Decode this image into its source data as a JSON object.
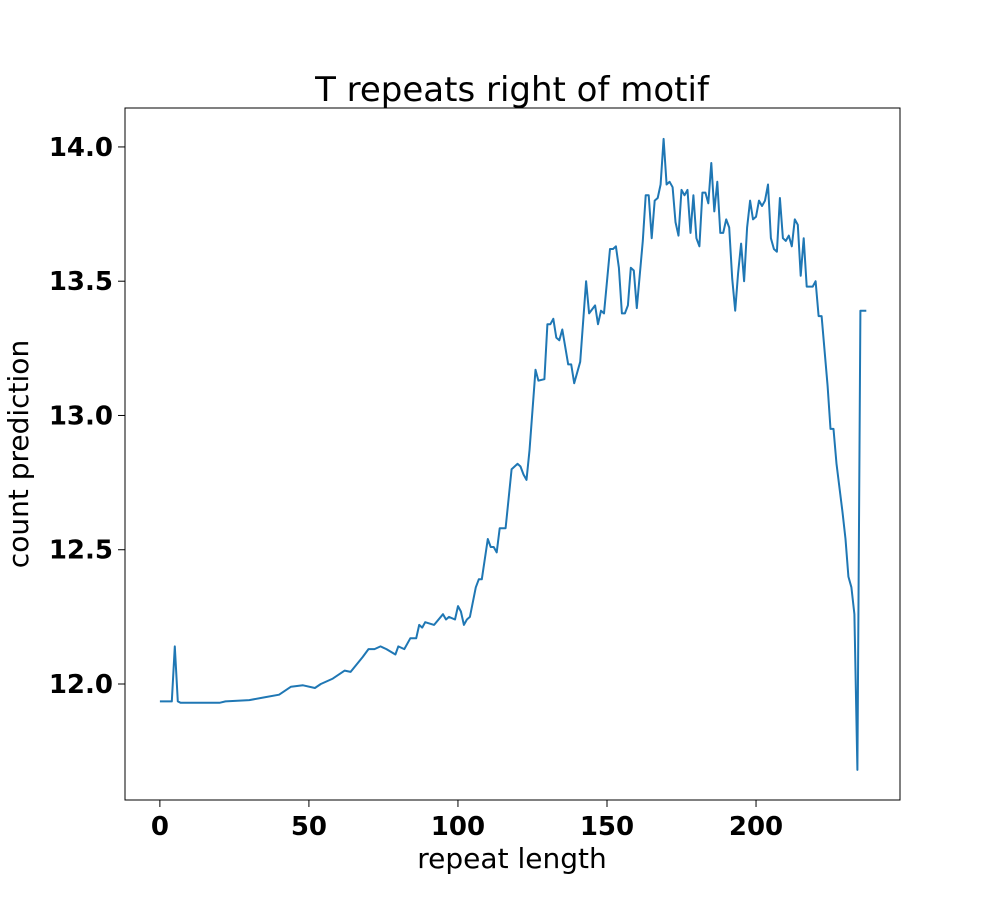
{
  "chart_data": {
    "type": "line",
    "title": "T repeats right of motif",
    "xlabel": "repeat length",
    "ylabel": "count prediction",
    "xlim": [
      -11.7,
      248.3
    ],
    "ylim": [
      11.568,
      14.145
    ],
    "xticks": [
      0,
      50,
      100,
      150,
      200
    ],
    "xtick_labels": [
      "0",
      "50",
      "100",
      "150",
      "200"
    ],
    "yticks": [
      12.0,
      12.5,
      13.0,
      13.5,
      14.0
    ],
    "ytick_labels": [
      "12.0",
      "12.5",
      "13.0",
      "13.5",
      "14.0"
    ],
    "grid": false,
    "series": [
      {
        "name": "count prediction",
        "color": "#1f77b4",
        "x": [
          0,
          4,
          5,
          6,
          7,
          20,
          22,
          30,
          35,
          40,
          44,
          48,
          52,
          54,
          58,
          62,
          64,
          68,
          70,
          72,
          74,
          76,
          79,
          80,
          82,
          84,
          86,
          87,
          88,
          89,
          92,
          95,
          96,
          97,
          99,
          100,
          101,
          102,
          103,
          104,
          106,
          107,
          108,
          110,
          111,
          112,
          113,
          114,
          116,
          118,
          120,
          121,
          122,
          123,
          124,
          126,
          127,
          129,
          130,
          131,
          132,
          133,
          134,
          135,
          137,
          138,
          139,
          141,
          143,
          144,
          146,
          147,
          148,
          149,
          151,
          152,
          153,
          154,
          155,
          156,
          157,
          158,
          159,
          160,
          162,
          163,
          164,
          165,
          166,
          167,
          168,
          169,
          170,
          171,
          172,
          173,
          174,
          175,
          176,
          177,
          178,
          179,
          180,
          181,
          182,
          183,
          184,
          185,
          186,
          187,
          188,
          189,
          190,
          191,
          192,
          193,
          194,
          195,
          196,
          197,
          198,
          199,
          200,
          201,
          202,
          203,
          204,
          205,
          206,
          207,
          208,
          209,
          210,
          211,
          212,
          213,
          214,
          215,
          216,
          217,
          219,
          220,
          221,
          222,
          223,
          224,
          225,
          226,
          227,
          228,
          229,
          230,
          231,
          232,
          233,
          234,
          235,
          237
        ],
        "y": [
          11.935,
          11.935,
          12.14,
          11.935,
          11.93,
          11.93,
          11.935,
          11.94,
          11.95,
          11.96,
          11.99,
          11.995,
          11.985,
          12.0,
          12.02,
          12.05,
          12.045,
          12.1,
          12.13,
          12.13,
          12.14,
          12.13,
          12.11,
          12.14,
          12.13,
          12.17,
          12.17,
          12.22,
          12.21,
          12.23,
          12.22,
          12.26,
          12.24,
          12.25,
          12.24,
          12.29,
          12.27,
          12.22,
          12.24,
          12.25,
          12.36,
          12.39,
          12.39,
          12.54,
          12.51,
          12.51,
          12.49,
          12.58,
          12.58,
          12.8,
          12.82,
          12.81,
          12.78,
          12.76,
          12.87,
          13.17,
          13.13,
          13.135,
          13.34,
          13.34,
          13.36,
          13.29,
          13.28,
          13.32,
          13.19,
          13.19,
          13.12,
          13.2,
          13.5,
          13.38,
          13.41,
          13.34,
          13.39,
          13.38,
          13.62,
          13.62,
          13.63,
          13.55,
          13.38,
          13.38,
          13.41,
          13.55,
          13.54,
          13.4,
          13.65,
          13.82,
          13.82,
          13.66,
          13.8,
          13.81,
          13.86,
          14.03,
          13.86,
          13.87,
          13.85,
          13.72,
          13.67,
          13.84,
          13.82,
          13.84,
          13.68,
          13.82,
          13.66,
          13.63,
          13.83,
          13.83,
          13.79,
          13.94,
          13.76,
          13.87,
          13.68,
          13.68,
          13.73,
          13.7,
          13.51,
          13.39,
          13.53,
          13.64,
          13.5,
          13.7,
          13.8,
          13.73,
          13.74,
          13.8,
          13.78,
          13.8,
          13.86,
          13.66,
          13.62,
          13.61,
          13.81,
          13.66,
          13.65,
          13.67,
          13.63,
          13.73,
          13.71,
          13.52,
          13.66,
          13.48,
          13.48,
          13.5,
          13.37,
          13.37,
          13.24,
          13.11,
          12.95,
          12.95,
          12.82,
          12.73,
          12.64,
          12.54,
          12.4,
          12.36,
          12.26,
          11.68,
          13.39,
          13.39
        ]
      }
    ]
  }
}
